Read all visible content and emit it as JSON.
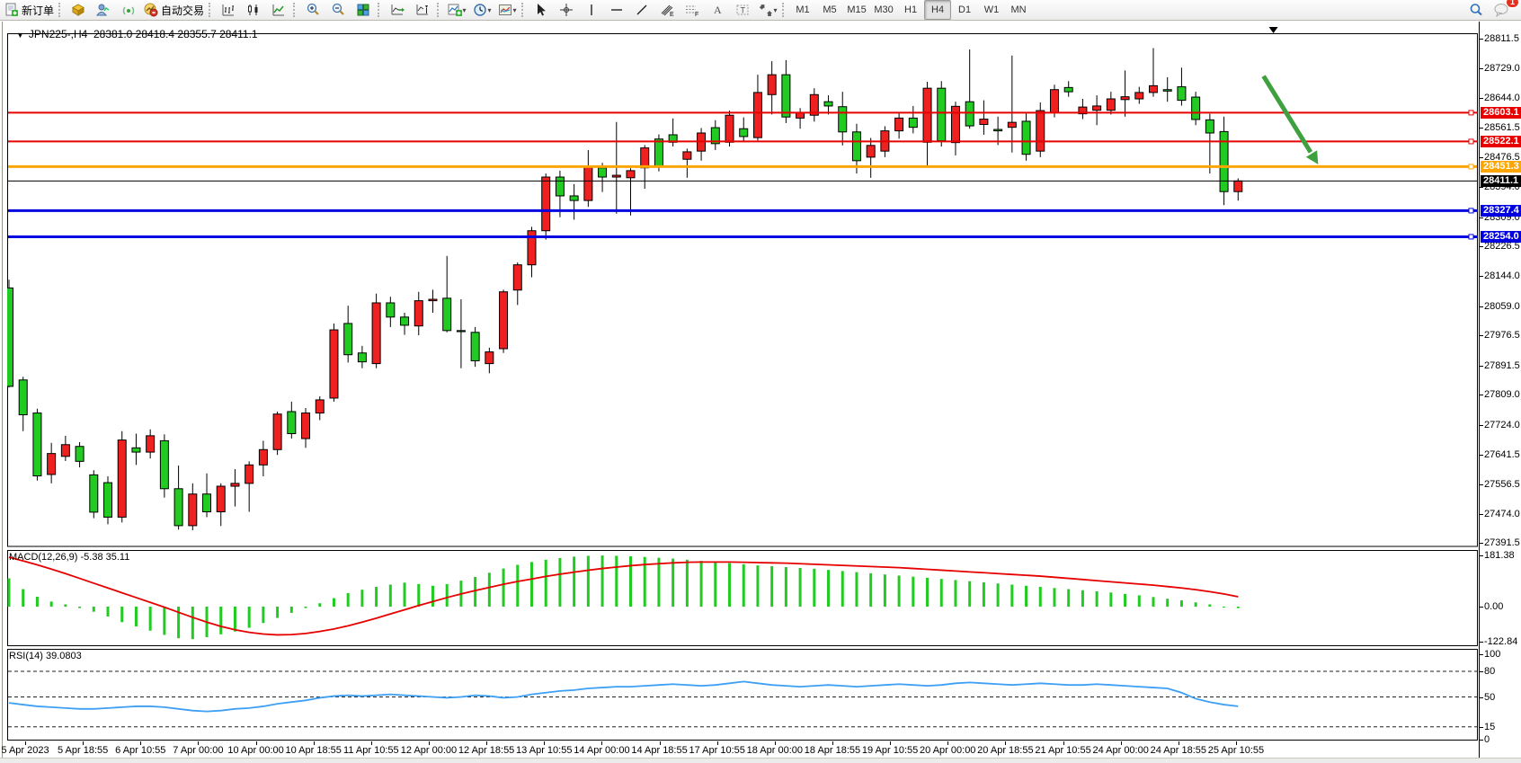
{
  "toolbar": {
    "new_order_label": "新订单",
    "autotrade_label": "自动交易",
    "timeframes": [
      "M1",
      "M5",
      "M15",
      "M30",
      "H1",
      "H4",
      "D1",
      "W1",
      "MN"
    ],
    "active_timeframe": "H4",
    "chat_badge": "1"
  },
  "chart": {
    "symbol_period": "JPN225-,H4",
    "ohlc_line": "28381.0 28418.4 28355.7 28411.1",
    "dropdown_glyph": "▼"
  },
  "macd_panel": {
    "label": "MACD(12,26,9)",
    "values": "-5.38 35.11",
    "axis_ticks": [
      181.38,
      0.0,
      -122.84
    ]
  },
  "rsi_panel": {
    "label": "RSI(14)",
    "value": "39.0803",
    "axis_ticks": [
      100,
      80,
      50,
      15,
      0
    ],
    "dashed_levels": [
      80,
      50,
      15
    ]
  },
  "price_axis": {
    "ticks": [
      28811.5,
      28729.0,
      28644.0,
      28561.5,
      28476.5,
      28394.0,
      28309.0,
      28226.5,
      28144.0,
      28059.0,
      27976.5,
      27891.5,
      27809.0,
      27724.0,
      27641.5,
      27556.5,
      27474.0,
      27391.5
    ]
  },
  "hlines": [
    {
      "price": 28603.1,
      "label": "28603.1",
      "color": "#e80000",
      "width": 2,
      "kind": "resistance"
    },
    {
      "price": 28522.1,
      "label": "28522.1",
      "color": "#e80000",
      "width": 2,
      "kind": "resistance"
    },
    {
      "price": 28451.3,
      "label": "28451.3",
      "color": "#ffa500",
      "width": 3,
      "kind": "pivot"
    },
    {
      "price": 28411.1,
      "label": "28411.1",
      "color": "#000000",
      "width": 1,
      "kind": "current-price"
    },
    {
      "price": 28327.4,
      "label": "28327.4",
      "color": "#0000e0",
      "width": 3,
      "kind": "support"
    },
    {
      "price": 28254.0,
      "label": "28254.0",
      "color": "#0000e0",
      "width": 3,
      "kind": "support"
    }
  ],
  "time_axis": {
    "labels": [
      "5 Apr 2023",
      "5 Apr 18:55",
      "6 Apr 10:55",
      "7 Apr 00:00",
      "10 Apr 00:00",
      "10 Apr 18:55",
      "11 Apr 10:55",
      "12 Apr 00:00",
      "12 Apr 18:55",
      "13 Apr 10:55",
      "14 Apr 00:00",
      "14 Apr 18:55",
      "17 Apr 10:55",
      "18 Apr 00:00",
      "18 Apr 18:55",
      "19 Apr 10:55",
      "20 Apr 00:00",
      "20 Apr 18:55",
      "21 Apr 10:55",
      "24 Apr 00:00",
      "24 Apr 18:55",
      "25 Apr 10:55"
    ]
  },
  "chart_data": {
    "type": "candlestick",
    "symbol": "JPN225-",
    "timeframe": "H4",
    "title": "JPN225-,H4 28381.0 28418.4 28355.7 28411.1",
    "current_bar": {
      "open": 28381.0,
      "high": 28418.4,
      "low": 28355.7,
      "close": 28411.1
    },
    "ylim": [
      27391.5,
      28811.5
    ],
    "bull_color": "#ee2020",
    "bear_color": "#22cb22",
    "candles_ohlc": [
      [
        28110,
        28133,
        27830,
        27833
      ],
      [
        27851,
        27860,
        27707,
        27753
      ],
      [
        27758,
        27770,
        27568,
        27581
      ],
      [
        27585,
        27674,
        27560,
        27644
      ],
      [
        27636,
        27694,
        27623,
        27669
      ],
      [
        27664,
        27676,
        27605,
        27622
      ],
      [
        27584,
        27597,
        27462,
        27479
      ],
      [
        27562,
        27580,
        27445,
        27465
      ],
      [
        27465,
        27707,
        27450,
        27682
      ],
      [
        27660,
        27700,
        27612,
        27648
      ],
      [
        27648,
        27712,
        27630,
        27694
      ],
      [
        27680,
        27698,
        27520,
        27545
      ],
      [
        27545,
        27610,
        27430,
        27441
      ],
      [
        27441,
        27560,
        27428,
        27530
      ],
      [
        27530,
        27588,
        27465,
        27480
      ],
      [
        27480,
        27560,
        27440,
        27552
      ],
      [
        27552,
        27600,
        27495,
        27560
      ],
      [
        27560,
        27622,
        27480,
        27612
      ],
      [
        27612,
        27680,
        27580,
        27655
      ],
      [
        27655,
        27762,
        27640,
        27755
      ],
      [
        27762,
        27790,
        27686,
        27700
      ],
      [
        27686,
        27772,
        27660,
        27758
      ],
      [
        27758,
        27805,
        27738,
        27795
      ],
      [
        27800,
        28010,
        27790,
        27992
      ],
      [
        28010,
        28060,
        27900,
        27922
      ],
      [
        27927,
        27947,
        27884,
        27902
      ],
      [
        27897,
        28094,
        27884,
        28068
      ],
      [
        28068,
        28085,
        28000,
        28028
      ],
      [
        28028,
        28040,
        27978,
        28005
      ],
      [
        28003,
        28099,
        27977,
        28074
      ],
      [
        28074,
        28105,
        28040,
        28078
      ],
      [
        28081,
        28200,
        27985,
        27990
      ],
      [
        27990,
        28078,
        27884,
        27988
      ],
      [
        27985,
        28000,
        27888,
        27905
      ],
      [
        27897,
        27942,
        27870,
        27930
      ],
      [
        27939,
        28105,
        27927,
        28099
      ],
      [
        28104,
        28182,
        28062,
        28175
      ],
      [
        28175,
        28282,
        28140,
        28271
      ],
      [
        28271,
        28432,
        28246,
        28422
      ],
      [
        28422,
        28440,
        28309,
        28369
      ],
      [
        28369,
        28402,
        28302,
        28356
      ],
      [
        28356,
        28498,
        28338,
        28452
      ],
      [
        28448,
        28462,
        28380,
        28422
      ],
      [
        28422,
        28577,
        28319,
        28427
      ],
      [
        28420,
        28447,
        28314,
        28440
      ],
      [
        28448,
        28512,
        28389,
        28504
      ],
      [
        28529,
        28542,
        28438,
        28453
      ],
      [
        28541,
        28587,
        28508,
        28520
      ],
      [
        28472,
        28502,
        28420,
        28493
      ],
      [
        28495,
        28560,
        28468,
        28546
      ],
      [
        28561,
        28582,
        28498,
        28516
      ],
      [
        28520,
        28609,
        28508,
        28596
      ],
      [
        28558,
        28590,
        28520,
        28536
      ],
      [
        28533,
        28710,
        28525,
        28660
      ],
      [
        28654,
        28748,
        28598,
        28710
      ],
      [
        28710,
        28751,
        28574,
        28591
      ],
      [
        28588,
        28616,
        28558,
        28603
      ],
      [
        28596,
        28672,
        28578,
        28654
      ],
      [
        28634,
        28652,
        28598,
        28622
      ],
      [
        28620,
        28662,
        28511,
        28549
      ],
      [
        28549,
        28572,
        28432,
        28468
      ],
      [
        28478,
        28532,
        28420,
        28511
      ],
      [
        28495,
        28565,
        28478,
        28552
      ],
      [
        28552,
        28602,
        28530,
        28588
      ],
      [
        28588,
        28622,
        28545,
        28562
      ],
      [
        28520,
        28690,
        28455,
        28672
      ],
      [
        28672,
        28692,
        28508,
        28524
      ],
      [
        28519,
        28634,
        28483,
        28621
      ],
      [
        28634,
        28781,
        28558,
        28566
      ],
      [
        28570,
        28638,
        28541,
        28585
      ],
      [
        28556,
        28592,
        28512,
        28552
      ],
      [
        28562,
        28764,
        28491,
        28576
      ],
      [
        28579,
        28602,
        28468,
        28486
      ],
      [
        28495,
        28632,
        28478,
        28609
      ],
      [
        28604,
        28682,
        28590,
        28668
      ],
      [
        28674,
        28692,
        28648,
        28662
      ],
      [
        28600,
        28642,
        28585,
        28619
      ],
      [
        28610,
        28652,
        28568,
        28622
      ],
      [
        28610,
        28662,
        28598,
        28642
      ],
      [
        28640,
        28722,
        28592,
        28648
      ],
      [
        28642,
        28676,
        28628,
        28660
      ],
      [
        28660,
        28785,
        28648,
        28679
      ],
      [
        28668,
        28703,
        28634,
        28664
      ],
      [
        28676,
        28730,
        28623,
        28638
      ],
      [
        28647,
        28662,
        28568,
        28584
      ],
      [
        28583,
        28600,
        28432,
        28546
      ],
      [
        28550,
        28592,
        28343,
        28381
      ],
      [
        28381,
        28418.4,
        28355.7,
        28411.1
      ]
    ],
    "macd": {
      "params": "12,26,9",
      "last_main": -5.38,
      "last_signal": 35.11,
      "histogram_color": "#22cb22",
      "signal_color": "#e60000",
      "histogram": [
        100,
        62,
        35,
        18,
        8,
        -5,
        -18,
        -35,
        -55,
        -70,
        -85,
        -100,
        -112,
        -115,
        -108,
        -98,
        -88,
        -75,
        -58,
        -40,
        -22,
        -5,
        12,
        30,
        48,
        60,
        70,
        78,
        85,
        80,
        74,
        80,
        92,
        105,
        120,
        135,
        148,
        158,
        166,
        172,
        177,
        180,
        181,
        180,
        178,
        176,
        173,
        170,
        166,
        162,
        158,
        154,
        150,
        146,
        143,
        140,
        137,
        134,
        130,
        126,
        122,
        118,
        114,
        110,
        106,
        102,
        98,
        94,
        90,
        86,
        82,
        78,
        74,
        70,
        66,
        62,
        58,
        54,
        50,
        45,
        40,
        34,
        28,
        22,
        15,
        8,
        0,
        -5.38
      ],
      "signal": [
        175,
        162,
        148,
        133,
        117,
        100,
        83,
        66,
        49,
        32,
        15,
        -2,
        -20,
        -38,
        -55,
        -70,
        -82,
        -91,
        -97,
        -100,
        -99,
        -95,
        -88,
        -79,
        -68,
        -55,
        -41,
        -26,
        -11,
        4,
        18,
        32,
        45,
        57,
        68,
        79,
        89,
        98,
        107,
        115,
        122,
        129,
        135,
        140,
        145,
        149,
        152,
        155,
        157,
        158,
        158,
        158,
        157,
        156,
        155,
        154,
        152,
        150,
        148,
        146,
        144,
        142,
        140,
        138,
        135,
        132,
        129,
        126,
        123,
        120,
        117,
        114,
        111,
        108,
        104,
        100,
        96,
        92,
        88,
        84,
        80,
        76,
        71,
        66,
        60,
        53,
        45,
        35.11
      ]
    },
    "rsi": {
      "period": 14,
      "last": 39.0803,
      "line_color": "#3da0f5",
      "values": [
        43,
        41,
        39,
        38,
        37,
        36,
        36,
        37,
        38,
        39,
        39,
        38,
        36,
        34,
        33,
        34,
        36,
        37,
        39,
        42,
        44,
        46,
        49,
        51,
        52,
        51,
        52,
        53,
        52,
        51,
        50,
        49,
        50,
        52,
        51,
        49,
        50,
        53,
        55,
        57,
        58,
        60,
        61,
        62,
        62,
        63,
        64,
        65,
        64,
        63,
        64,
        66,
        68,
        66,
        64,
        63,
        62,
        63,
        64,
        63,
        62,
        63,
        64,
        65,
        64,
        63,
        64,
        66,
        67,
        66,
        65,
        64,
        65,
        66,
        65,
        64,
        64,
        65,
        64,
        63,
        62,
        61,
        60,
        55,
        48,
        44,
        41,
        39.08
      ]
    },
    "annotations": {
      "arrow": {
        "color": "#3fa03f",
        "start_bar": 88.8,
        "start_price": 28706,
        "end_bar": 92.6,
        "end_price": 28462
      },
      "shift_marker_bar": 89.5
    }
  }
}
